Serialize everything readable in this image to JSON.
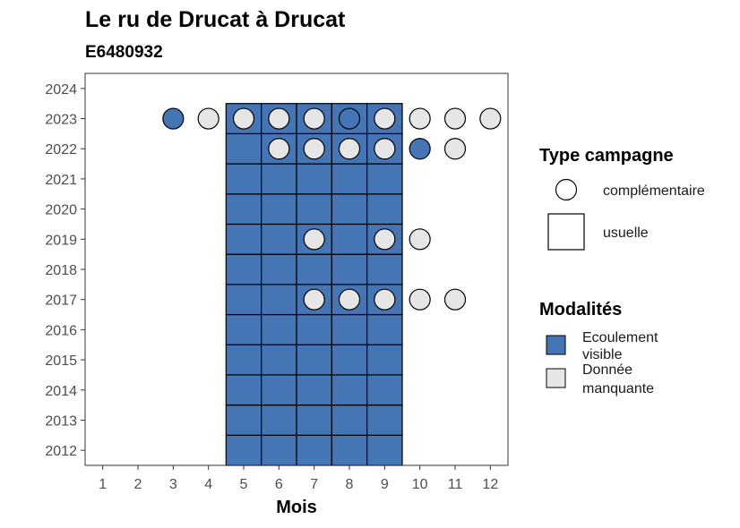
{
  "chart_data": {
    "type": "heatmap",
    "title": "Le ru de Drucat à Drucat",
    "subtitle": "E6480932",
    "xlabel": "Mois",
    "ylabel": "",
    "x_ticks": [
      1,
      2,
      3,
      4,
      5,
      6,
      7,
      8,
      9,
      10,
      11,
      12
    ],
    "y_ticks": [
      2012,
      2013,
      2014,
      2015,
      2016,
      2017,
      2018,
      2019,
      2020,
      2021,
      2022,
      2023,
      2024
    ],
    "xlim": [
      0.5,
      12.5
    ],
    "ylim": [
      2011.5,
      2024.5
    ],
    "grid": false,
    "legend_position": "right",
    "colors": {
      "Ecoulement visible": "#4575b4",
      "Donnée manquante": "#e6e6e6"
    },
    "legend": {
      "type_title": "Type campagne",
      "type_entries": [
        {
          "shape": "circle",
          "label": "complémentaire"
        },
        {
          "shape": "square",
          "label": "usuelle"
        }
      ],
      "modalite_title": "Modalités",
      "modalite_entries": [
        {
          "key": "Ecoulement visible",
          "label_lines": [
            "Ecoulement",
            "visible"
          ]
        },
        {
          "key": "Donnée manquante",
          "label_lines": [
            "Donnée",
            "manquante"
          ]
        }
      ]
    },
    "usuelle": {
      "months": [
        5,
        6,
        7,
        8,
        9
      ],
      "years": [
        2012,
        2013,
        2014,
        2015,
        2016,
        2017,
        2018,
        2019,
        2020,
        2021,
        2022,
        2023
      ],
      "modalite": "Ecoulement visible"
    },
    "complementaire": [
      {
        "year": 2023,
        "month": 3,
        "modalite": "Ecoulement visible"
      },
      {
        "year": 2023,
        "month": 4,
        "modalite": "Donnée manquante"
      },
      {
        "year": 2023,
        "month": 5,
        "modalite": "Donnée manquante"
      },
      {
        "year": 2023,
        "month": 6,
        "modalite": "Donnée manquante"
      },
      {
        "year": 2023,
        "month": 7,
        "modalite": "Donnée manquante"
      },
      {
        "year": 2023,
        "month": 8,
        "modalite": "Ecoulement visible"
      },
      {
        "year": 2023,
        "month": 9,
        "modalite": "Donnée manquante"
      },
      {
        "year": 2023,
        "month": 10,
        "modalite": "Donnée manquante"
      },
      {
        "year": 2023,
        "month": 11,
        "modalite": "Donnée manquante"
      },
      {
        "year": 2023,
        "month": 12,
        "modalite": "Donnée manquante"
      },
      {
        "year": 2022,
        "month": 6,
        "modalite": "Donnée manquante"
      },
      {
        "year": 2022,
        "month": 7,
        "modalite": "Donnée manquante"
      },
      {
        "year": 2022,
        "month": 8,
        "modalite": "Donnée manquante"
      },
      {
        "year": 2022,
        "month": 9,
        "modalite": "Donnée manquante"
      },
      {
        "year": 2022,
        "month": 10,
        "modalite": "Ecoulement visible"
      },
      {
        "year": 2022,
        "month": 11,
        "modalite": "Donnée manquante"
      },
      {
        "year": 2019,
        "month": 7,
        "modalite": "Donnée manquante"
      },
      {
        "year": 2019,
        "month": 9,
        "modalite": "Donnée manquante"
      },
      {
        "year": 2019,
        "month": 10,
        "modalite": "Donnée manquante"
      },
      {
        "year": 2017,
        "month": 7,
        "modalite": "Donnée manquante"
      },
      {
        "year": 2017,
        "month": 8,
        "modalite": "Donnée manquante"
      },
      {
        "year": 2017,
        "month": 9,
        "modalite": "Donnée manquante"
      },
      {
        "year": 2017,
        "month": 10,
        "modalite": "Donnée manquante"
      },
      {
        "year": 2017,
        "month": 11,
        "modalite": "Donnée manquante"
      }
    ]
  }
}
